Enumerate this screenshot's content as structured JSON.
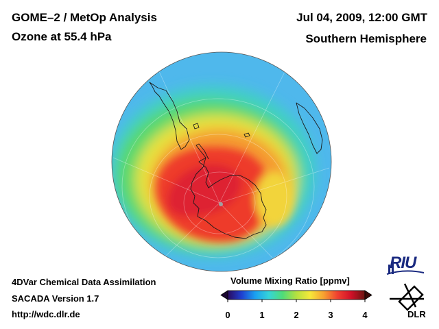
{
  "header": {
    "instrument": "GOME–2 / MetOp Analysis",
    "quantity": "Ozone at 55.4 hPa",
    "datetime": "Jul 04, 2009, 12:00 GMT",
    "region": "Southern Hemisphere"
  },
  "footer": {
    "method": "4DVar Chemical Data Assimilation",
    "version": "SACADA Version 1.7",
    "url": "http://wdc.dlr.de"
  },
  "colorbar": {
    "title": "Volume Mixing Ratio [ppmv]",
    "ticks": [
      "0",
      "1",
      "2",
      "3",
      "4"
    ],
    "min": 0,
    "max": 4,
    "colors": [
      "#2a0a5e",
      "#1f3fd0",
      "#1aa0f0",
      "#35d4d8",
      "#4fdc78",
      "#b4e040",
      "#f5e83a",
      "#f7a030",
      "#f04030",
      "#d01028",
      "#6a1410"
    ]
  },
  "logos": {
    "riu": "RIU",
    "dlr": "DLR"
  },
  "map": {
    "projection": "orthographic, south pole view",
    "field": "ozone volume mixing ratio",
    "field_levels": [
      {
        "region": "outer mid-latitudes",
        "value": 1.3
      },
      {
        "region": "subpolar ring",
        "value": 2.2
      },
      {
        "region": "polar vortex edge",
        "value": 3.0
      },
      {
        "region": "polar core",
        "value": 3.7
      }
    ]
  }
}
